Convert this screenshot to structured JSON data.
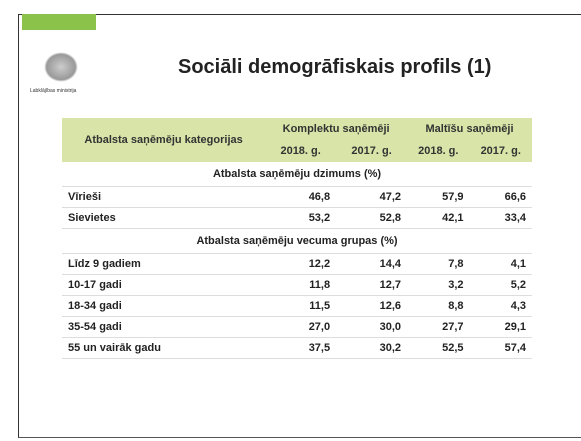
{
  "header": {
    "logo_text": "Labklājības ministrija",
    "title": "Sociāli demogrāfiskais profils (1)"
  },
  "table": {
    "header": {
      "category": "Atbalsta saņēmēju kategorijas",
      "groups": [
        "Komplektu saņēmēji",
        "Maltīšu saņēmēji"
      ],
      "years": [
        "2018. g.",
        "2017. g.",
        "2018. g.",
        "2017. g."
      ]
    },
    "sections": [
      {
        "title": "Atbalsta saņēmēju dzimums (%)",
        "rows": [
          [
            "Vīrieši",
            "46,8",
            "47,2",
            "57,9",
            "66,6"
          ],
          [
            "Sievietes",
            "53,2",
            "52,8",
            "42,1",
            "33,4"
          ]
        ]
      },
      {
        "title": "Atbalsta saņēmēju vecuma grupas (%)",
        "rows": [
          [
            "Līdz 9 gadiem",
            "12,2",
            "14,4",
            "7,8",
            "4,1"
          ],
          [
            "10-17 gadi",
            "11,8",
            "12,7",
            "3,2",
            "5,2"
          ],
          [
            "18-34 gadi",
            "11,5",
            "12,6",
            "8,8",
            "4,3"
          ],
          [
            "35-54 gadi",
            "27,0",
            "30,0",
            "27,7",
            "29,1"
          ],
          [
            "55 un vairāk gadu",
            "37,5",
            "30,2",
            "52,5",
            "57,4"
          ]
        ]
      }
    ]
  }
}
